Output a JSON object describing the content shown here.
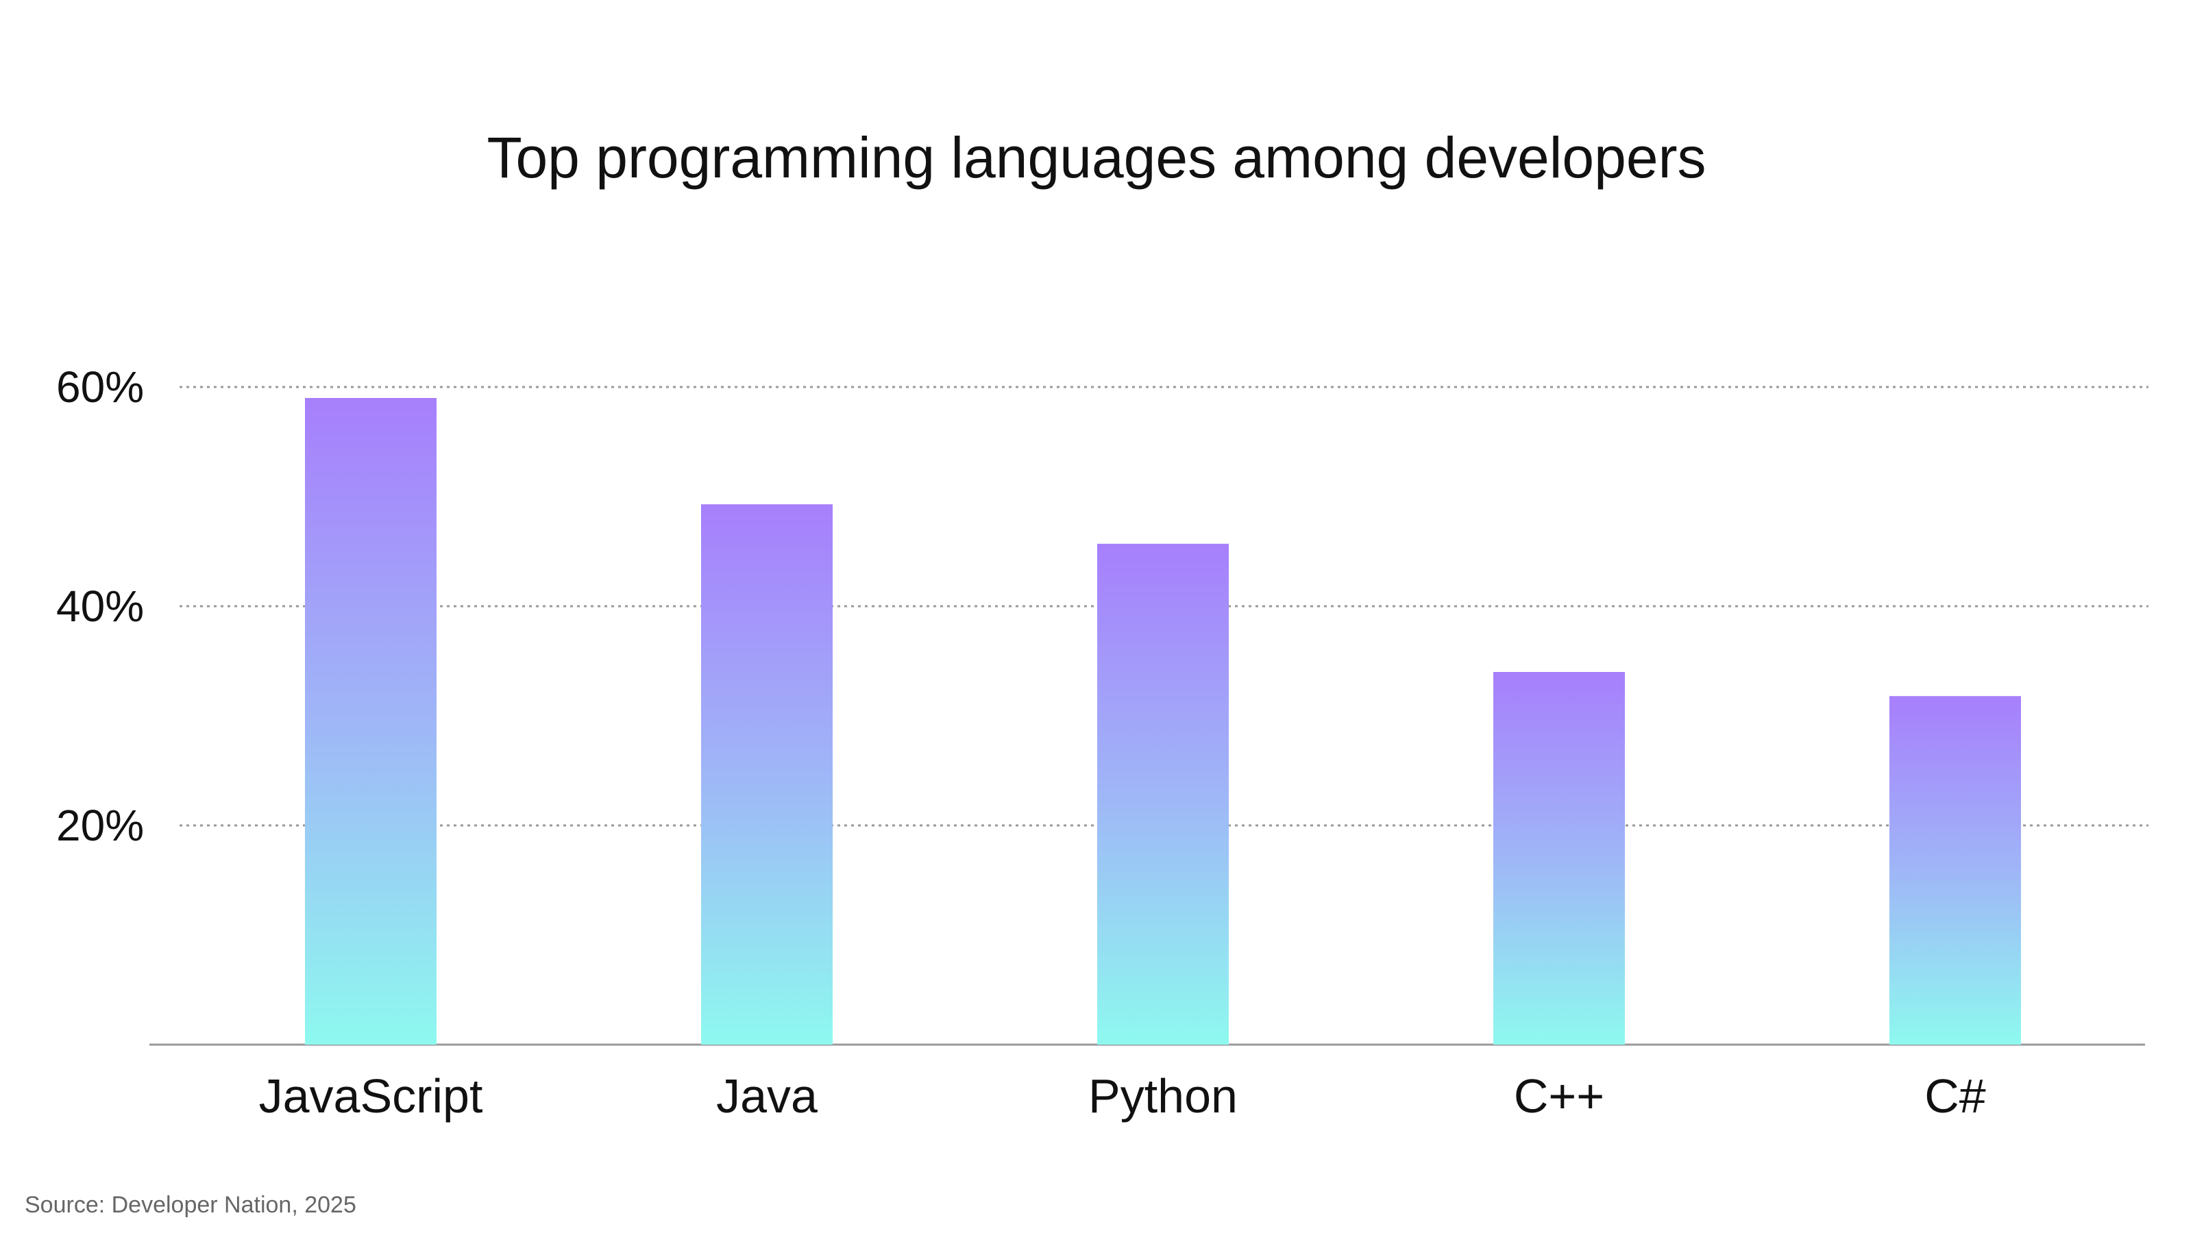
{
  "chart_data": {
    "type": "bar",
    "title": "Top programming languages among developers",
    "categories": [
      "JavaScript",
      "Java",
      "Python",
      "C++",
      "C#"
    ],
    "values": [
      59,
      49.3,
      45.7,
      34,
      31.8
    ],
    "unit": "%",
    "ylim": [
      0,
      60
    ],
    "yticks": [
      20,
      40,
      60
    ],
    "ytick_labels": [
      "20%",
      "40%",
      "60%"
    ],
    "grid": "horizontal dotted",
    "xlabel": "",
    "ylabel": "",
    "colors": {
      "bar_top": "#a77ffc",
      "bar_bottom": "#8ef9ef",
      "grid": "#999999",
      "axis": "#999999"
    }
  },
  "source": "Source: Developer Nation, 2025"
}
